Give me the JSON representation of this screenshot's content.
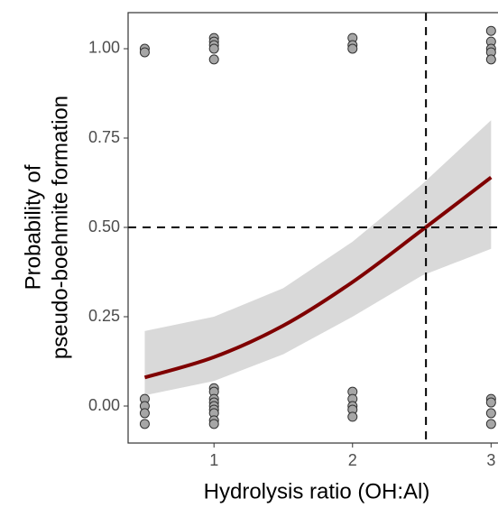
{
  "chart_data": {
    "type": "scatter",
    "x_label": "Hydrolysis ratio (OH:Al)",
    "y_label": [
      "Probability of",
      "pseudo-boehmite formation"
    ],
    "xlim": [
      0.38,
      3.05
    ],
    "ylim": [
      -0.1035,
      1.101
    ],
    "xticks": [
      1,
      2,
      3
    ],
    "yticks": [
      {
        "value": 0,
        "label": "0.00"
      },
      {
        "value": 0.25,
        "label": "0.25"
      },
      {
        "value": 0.5,
        "label": "0.50"
      },
      {
        "value": 0.75,
        "label": "0.75"
      },
      {
        "value": 1,
        "label": "1.00"
      }
    ],
    "hline": 0.5,
    "vline": 2.53,
    "points": {
      "color": "#a6a6a6",
      "x": [
        0.5,
        0.5,
        0.5,
        0.5,
        0.5,
        0.5,
        1,
        1,
        1,
        1,
        1,
        1,
        1,
        1,
        1,
        1,
        1,
        1,
        1,
        1,
        2,
        2,
        2,
        2,
        2,
        2,
        2,
        2,
        3,
        3,
        3,
        3,
        3,
        3,
        3,
        3,
        3
      ],
      "values": [
        1.0,
        0.99,
        0.02,
        0.0,
        -0.02,
        -0.05,
        1.03,
        1.02,
        1.01,
        1.0,
        0.97,
        0.05,
        0.04,
        0.02,
        0.01,
        0.0,
        -0.01,
        -0.02,
        -0.04,
        -0.05,
        1.03,
        1.01,
        1.0,
        0.04,
        0.02,
        0.0,
        -0.01,
        -0.03,
        1.05,
        1.02,
        1.0,
        0.99,
        0.97,
        0.02,
        0.01,
        -0.02,
        -0.05
      ]
    },
    "fit": {
      "color": "#7f0000",
      "band_color": "#d9d9d9",
      "x": [
        0.5,
        1,
        1.5,
        2,
        2.5,
        3
      ],
      "values": [
        0.08,
        0.137,
        0.225,
        0.347,
        0.492,
        0.64
      ],
      "lower": [
        0.03,
        0.07,
        0.145,
        0.25,
        0.365,
        0.44
      ],
      "upper": [
        0.21,
        0.25,
        0.33,
        0.46,
        0.62,
        0.8
      ]
    }
  }
}
